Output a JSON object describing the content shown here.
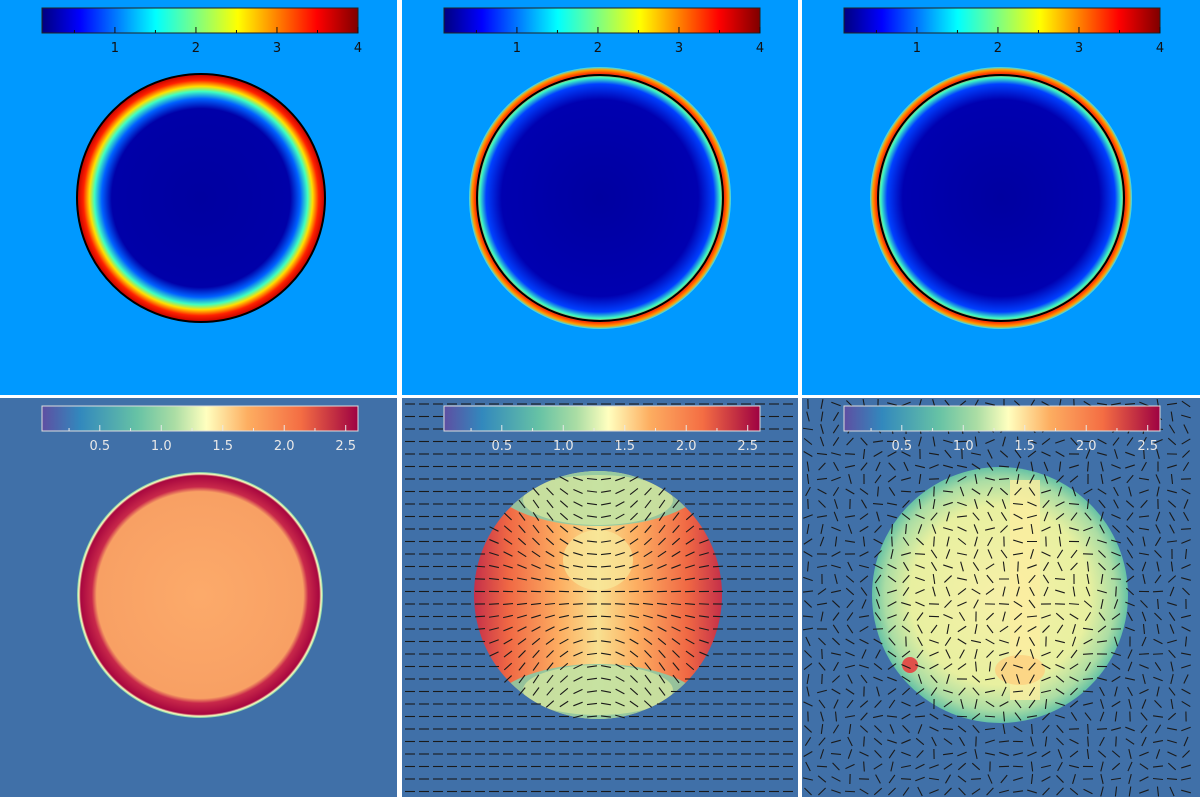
{
  "chart_data": {
    "type": "heatmap",
    "layout": "2x3 grid",
    "panels": [
      {
        "row": 1,
        "col": 1,
        "colormap": "jet",
        "colorbar": {
          "range": [
            0.1,
            4
          ],
          "ticks": [
            "1",
            "2",
            "3",
            "4"
          ],
          "placement": "top"
        },
        "background_value": 1.6,
        "contour": true
      },
      {
        "row": 1,
        "col": 2,
        "colormap": "jet",
        "colorbar": {
          "range": [
            0.1,
            4
          ],
          "ticks": [
            "1",
            "2",
            "3",
            "4"
          ],
          "placement": "top"
        },
        "background_value": 1.6,
        "contour": true
      },
      {
        "row": 1,
        "col": 3,
        "colormap": "jet",
        "colorbar": {
          "range": [
            0.1,
            4
          ],
          "ticks": [
            "1",
            "2",
            "3",
            "4"
          ],
          "placement": "top"
        },
        "background_value": 1.6,
        "contour": true
      },
      {
        "row": 2,
        "col": 1,
        "colormap": "spectral",
        "colorbar": {
          "range": [
            0.03,
            2.6
          ],
          "ticks": [
            "0.5",
            "1.0",
            "1.5",
            "2.0",
            "2.5"
          ],
          "placement": "top"
        },
        "vectors": "none"
      },
      {
        "row": 2,
        "col": 2,
        "colormap": "spectral",
        "colorbar": {
          "range": [
            0.03,
            2.6
          ],
          "ticks": [
            "0.5",
            "1.0",
            "1.5",
            "2.0",
            "2.5"
          ],
          "placement": "top"
        },
        "vectors": "ordered horizontal"
      },
      {
        "row": 2,
        "col": 3,
        "colormap": "spectral",
        "colorbar": {
          "range": [
            0.03,
            2.6
          ],
          "ticks": [
            "0.5",
            "1.0",
            "1.5",
            "2.0",
            "2.5"
          ],
          "placement": "top"
        },
        "vectors": "disordered"
      }
    ]
  },
  "colors": {
    "jet_background": "#0099ff",
    "spectral_background": "#4070a8",
    "contour": "#000000"
  }
}
